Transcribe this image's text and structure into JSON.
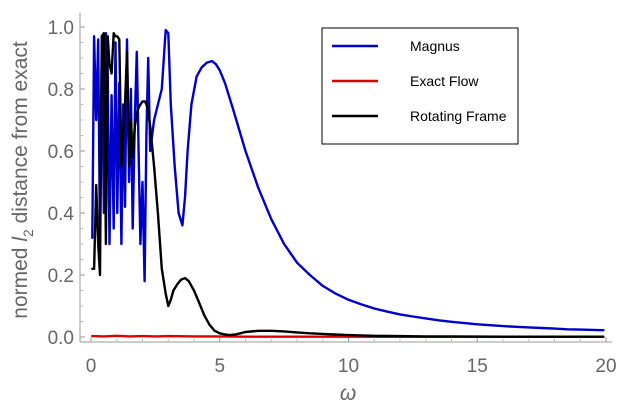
{
  "chart_data": {
    "type": "line",
    "xlabel": "ω",
    "ylabel_parts": {
      "before": "normed ",
      "italic": "l",
      "sub": "2",
      "after": " distance from exact"
    },
    "xlim": [
      0,
      20
    ],
    "ylim": [
      0,
      1.0
    ],
    "x_ticks": [
      0,
      5,
      10,
      15,
      20
    ],
    "y_ticks": [
      0.0,
      0.2,
      0.4,
      0.6,
      0.8,
      1.0
    ],
    "x_tick_labels": [
      "0",
      "5",
      "10",
      "15",
      "20"
    ],
    "y_tick_labels": [
      "0.0",
      "0.2",
      "0.4",
      "0.6",
      "0.8",
      "1.0"
    ],
    "grid": false,
    "legend_position": "top-right",
    "series": [
      {
        "name": "Magnus",
        "color": "#0000cc",
        "x": [
          0.05,
          0.12,
          0.2,
          0.28,
          0.35,
          0.42,
          0.5,
          0.58,
          0.65,
          0.72,
          0.8,
          0.88,
          0.95,
          1.02,
          1.1,
          1.18,
          1.25,
          1.32,
          1.4,
          1.48,
          1.55,
          1.62,
          1.7,
          1.78,
          1.85,
          1.92,
          2.0,
          2.08,
          2.15,
          2.22,
          2.3,
          2.45,
          2.6,
          2.75,
          2.9,
          3.0,
          3.1,
          3.25,
          3.4,
          3.55,
          3.65,
          3.75,
          3.9,
          4.1,
          4.3,
          4.5,
          4.7,
          4.85,
          5.0,
          5.2,
          5.5,
          6.0,
          6.5,
          7.0,
          7.5,
          8.0,
          8.5,
          9.0,
          9.5,
          10.0,
          10.5,
          11.0,
          11.5,
          12.0,
          12.5,
          13.0,
          13.5,
          14.0,
          14.5,
          15.0,
          15.5,
          16.0,
          16.5,
          17.0,
          17.5,
          18.0,
          18.5,
          19.0,
          19.5,
          19.9
        ],
        "y": [
          0.32,
          0.97,
          0.7,
          0.96,
          0.3,
          0.93,
          0.4,
          0.98,
          0.85,
          0.3,
          0.78,
          0.35,
          0.95,
          0.4,
          0.82,
          0.3,
          0.75,
          0.42,
          0.96,
          0.5,
          0.8,
          0.35,
          0.7,
          0.92,
          0.6,
          0.3,
          0.5,
          0.18,
          0.65,
          0.9,
          0.6,
          0.7,
          0.75,
          0.8,
          0.99,
          0.98,
          0.75,
          0.55,
          0.4,
          0.36,
          0.45,
          0.6,
          0.75,
          0.84,
          0.87,
          0.885,
          0.89,
          0.88,
          0.86,
          0.82,
          0.74,
          0.6,
          0.48,
          0.38,
          0.3,
          0.24,
          0.2,
          0.165,
          0.14,
          0.12,
          0.105,
          0.092,
          0.082,
          0.073,
          0.066,
          0.06,
          0.054,
          0.049,
          0.045,
          0.041,
          0.038,
          0.035,
          0.033,
          0.031,
          0.029,
          0.027,
          0.025,
          0.024,
          0.023,
          0.022
        ]
      },
      {
        "name": "Exact Flow",
        "color": "#dd0000",
        "x": [
          0.05,
          0.5,
          1.0,
          1.5,
          2.0,
          2.5,
          3.0,
          4.0,
          5.0,
          6.0,
          8.0,
          10.0,
          12.0,
          14.0,
          16.0,
          18.0,
          19.9
        ],
        "y": [
          0.003,
          0.002,
          0.004,
          0.002,
          0.003,
          0.002,
          0.003,
          0.002,
          0.002,
          0.001,
          0.001,
          0.001,
          0.0005,
          0.0005,
          0.0005,
          0.0005,
          0.0005
        ]
      },
      {
        "name": "Rotating Frame",
        "color": "#000000",
        "x": [
          0.05,
          0.12,
          0.2,
          0.28,
          0.35,
          0.42,
          0.5,
          0.58,
          0.65,
          0.72,
          0.8,
          0.88,
          0.95,
          1.02,
          1.1,
          1.18,
          1.25,
          1.32,
          1.4,
          1.48,
          1.55,
          1.62,
          1.7,
          1.78,
          1.85,
          1.92,
          2.0,
          2.1,
          2.2,
          2.3,
          2.45,
          2.6,
          2.75,
          2.9,
          3.0,
          3.1,
          3.2,
          3.35,
          3.5,
          3.65,
          3.8,
          4.0,
          4.2,
          4.4,
          4.6,
          4.8,
          5.0,
          5.2,
          5.4,
          5.6,
          5.8,
          6.0,
          6.5,
          7.0,
          7.5,
          8.0,
          8.5,
          9.0,
          10.0,
          11.0,
          12.0,
          13.0,
          14.0,
          16.0,
          18.0,
          19.9
        ],
        "y": [
          0.22,
          0.22,
          0.49,
          0.3,
          0.2,
          0.97,
          0.98,
          0.3,
          0.97,
          0.88,
          0.85,
          0.98,
          0.97,
          0.97,
          0.96,
          0.55,
          0.65,
          0.75,
          0.92,
          0.55,
          0.7,
          0.58,
          0.68,
          0.72,
          0.74,
          0.75,
          0.76,
          0.76,
          0.74,
          0.68,
          0.55,
          0.4,
          0.22,
          0.14,
          0.1,
          0.12,
          0.15,
          0.17,
          0.185,
          0.19,
          0.18,
          0.15,
          0.11,
          0.07,
          0.04,
          0.02,
          0.012,
          0.008,
          0.006,
          0.008,
          0.012,
          0.016,
          0.02,
          0.02,
          0.018,
          0.015,
          0.012,
          0.01,
          0.006,
          0.004,
          0.003,
          0.002,
          0.002,
          0.001,
          0.001,
          0.001
        ]
      }
    ]
  }
}
